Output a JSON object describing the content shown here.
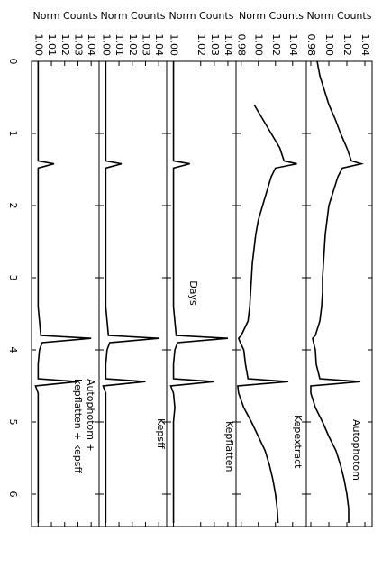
{
  "chart_data": [
    {
      "type": "line",
      "label": [
        "Autophotom"
      ],
      "ylabel": "Norm Counts",
      "xlim": [
        0,
        6.45
      ],
      "ylim": [
        0.975,
        1.048
      ],
      "yticks": [
        0.98,
        {
          "value": 1.0,
          "label": "1.00"
        },
        1.02,
        1.04
      ],
      "x": [
        0,
        0.2,
        0.4,
        0.6,
        0.8,
        1.0,
        1.2,
        1.38,
        1.42,
        1.48,
        1.6,
        1.8,
        2.0,
        2.2,
        2.4,
        2.6,
        2.8,
        3.0,
        3.2,
        3.4,
        3.6,
        3.8,
        3.84,
        3.9,
        4.0,
        4.2,
        4.4,
        4.44,
        4.5,
        4.6,
        4.8,
        5.0,
        5.2,
        5.4,
        5.6,
        5.8,
        6.0,
        6.2,
        6.4
      ],
      "values": [
        0.987,
        0.99,
        0.995,
        1.0,
        1.007,
        1.013,
        1.02,
        1.025,
        1.036,
        1.015,
        1.01,
        1.005,
        1.0,
        0.998,
        0.996,
        0.995,
        0.994,
        0.993,
        0.993,
        0.992,
        0.99,
        0.985,
        0.982,
        0.983,
        0.985,
        0.986,
        0.99,
        1.035,
        0.98,
        0.98,
        0.985,
        0.993,
        1.0,
        1.008,
        1.013,
        1.017,
        1.02,
        1.022,
        1.022
      ]
    },
    {
      "type": "line",
      "label": [
        "Kepextract"
      ],
      "ylabel": "Norm Counts",
      "xlim": [
        0,
        6.45
      ],
      "ylim": [
        0.974,
        1.056
      ],
      "yticks": [
        0.98,
        {
          "value": 1.0,
          "label": "1.00"
        },
        1.02,
        1.04
      ],
      "x": [
        0,
        0.2,
        0.4,
        0.6,
        0.8,
        1.0,
        1.2,
        1.38,
        1.42,
        1.48,
        1.6,
        1.8,
        2.0,
        2.2,
        2.4,
        2.6,
        2.8,
        3.0,
        3.2,
        3.4,
        3.6,
        3.8,
        3.84,
        3.9,
        4.0,
        4.2,
        4.4,
        4.44,
        4.5,
        4.6,
        4.8,
        5.0,
        5.2,
        5.4,
        5.6,
        5.8,
        6.0,
        6.2,
        6.4
      ],
      "values": [
        null,
        null,
        null,
        0.995,
        1.005,
        1.015,
        1.025,
        1.03,
        1.045,
        1.02,
        1.015,
        1.01,
        1.005,
        1.0,
        0.997,
        0.995,
        0.993,
        0.992,
        0.991,
        0.99,
        0.988,
        0.98,
        0.977,
        0.979,
        0.983,
        0.985,
        0.988,
        1.035,
        0.976,
        0.977,
        0.983,
        0.992,
        1.0,
        1.008,
        1.013,
        1.017,
        1.02,
        1.022,
        1.023
      ]
    },
    {
      "type": "line",
      "label": [
        "Kepflatten"
      ],
      "ylabel": "Norm Counts",
      "xlim": [
        0,
        6.45
      ],
      "ylim": [
        0.995,
        1.046
      ],
      "yticks": [
        {
          "value": 1.0,
          "label": "1.00"
        },
        1.02,
        1.03,
        1.04
      ],
      "x": [
        0,
        0.2,
        0.4,
        0.6,
        0.8,
        1.0,
        1.2,
        1.38,
        1.42,
        1.48,
        1.6,
        1.8,
        2.0,
        2.2,
        2.4,
        2.6,
        2.8,
        3.0,
        3.2,
        3.4,
        3.6,
        3.8,
        3.84,
        3.9,
        4.0,
        4.2,
        4.4,
        4.44,
        4.5,
        4.6,
        4.8,
        5.0,
        5.2,
        5.4,
        5.6,
        5.8,
        6.0,
        6.2,
        6.4
      ],
      "values": [
        1.0,
        1.0,
        1.0,
        1.0,
        1.0,
        1.0,
        1.0,
        1.0,
        1.012,
        1.0,
        1.0,
        1.0,
        1.0,
        1.0,
        1.0,
        1.0,
        1.0,
        1.0,
        1.0,
        1.0,
        1.001,
        1.002,
        1.04,
        1.003,
        1.001,
        1.0,
        1.0,
        1.03,
        0.998,
        1.0,
        1.001,
        1.0,
        1.0,
        1.0,
        1.0,
        1.0,
        1.0,
        1.0,
        1.0
      ]
    },
    {
      "type": "line",
      "label": [
        "Kepsff"
      ],
      "ylabel": "Norm Counts",
      "xlim": [
        0,
        6.45
      ],
      "ylim": [
        0.995,
        1.046
      ],
      "yticks": [
        {
          "value": 1.0,
          "label": "1.00"
        },
        1.01,
        1.02,
        1.03,
        1.04
      ],
      "x": [
        0,
        0.2,
        0.4,
        0.6,
        0.8,
        1.0,
        1.2,
        1.38,
        1.42,
        1.48,
        1.6,
        1.8,
        2.0,
        2.2,
        2.4,
        2.6,
        2.8,
        3.0,
        3.2,
        3.4,
        3.6,
        3.8,
        3.84,
        3.9,
        4.0,
        4.2,
        4.4,
        4.44,
        4.5,
        4.6,
        4.8,
        5.0,
        5.2,
        5.4,
        5.6,
        5.8,
        6.0,
        6.2,
        6.4
      ],
      "values": [
        1.0,
        1.0,
        1.0,
        1.0,
        1.0,
        1.0,
        1.0,
        1.0,
        1.012,
        1.0,
        1.0,
        1.0,
        1.0,
        1.0,
        1.0,
        1.0,
        1.0,
        1.0,
        1.0,
        1.0,
        1.001,
        1.002,
        1.04,
        1.003,
        1.001,
        1.0,
        1.0,
        1.03,
        0.998,
        1.0,
        1.0,
        1.0,
        1.0,
        1.0,
        1.0,
        1.0,
        1.0,
        1.0,
        1.0
      ]
    },
    {
      "type": "line",
      "label": [
        "Autophotom +",
        "kepflatten + kepsff"
      ],
      "ylabel": "Norm Counts",
      "xlabel": "Days",
      "xlim": [
        0,
        6.45
      ],
      "xticks": [
        0,
        1,
        2,
        3,
        4,
        5,
        6
      ],
      "ylim": [
        0.995,
        1.046
      ],
      "yticks": [
        {
          "value": 1.0,
          "label": "1.00"
        },
        1.01,
        1.02,
        1.03,
        1.04
      ],
      "x": [
        0,
        0.2,
        0.4,
        0.6,
        0.8,
        1.0,
        1.2,
        1.38,
        1.42,
        1.48,
        1.6,
        1.8,
        2.0,
        2.2,
        2.4,
        2.6,
        2.8,
        3.0,
        3.2,
        3.4,
        3.6,
        3.8,
        3.84,
        3.9,
        4.0,
        4.2,
        4.4,
        4.44,
        4.5,
        4.6,
        4.8,
        5.0,
        5.2,
        5.4,
        5.6,
        5.8,
        6.0,
        6.2,
        6.4
      ],
      "values": [
        1.0,
        1.0,
        1.0,
        1.0,
        1.0,
        1.0,
        1.0,
        1.0,
        1.012,
        1.0,
        1.0,
        1.0,
        1.0,
        1.0,
        1.0,
        1.0,
        1.0,
        1.0,
        1.0,
        1.0,
        1.001,
        1.002,
        1.04,
        1.003,
        1.001,
        1.0,
        1.0,
        1.03,
        0.998,
        1.0,
        1.0,
        1.0,
        1.0,
        1.0,
        1.0,
        1.0,
        1.0,
        1.0,
        1.0
      ]
    }
  ]
}
